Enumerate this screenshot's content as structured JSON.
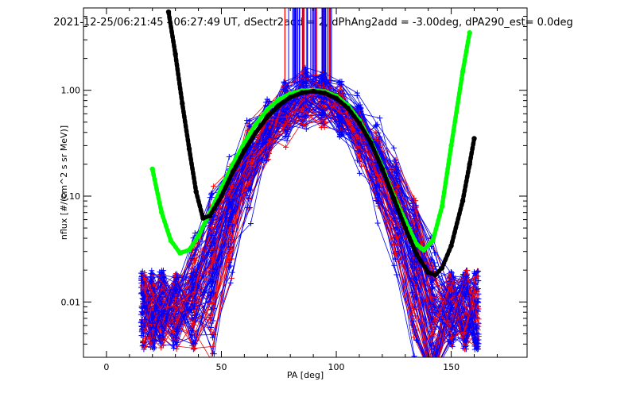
{
  "chart_data": {
    "type": "line",
    "title": "2021-12-25/06:21:45 - 06:27:49 UT, dSectr2add = 2, dPhAng2add = -3.00deg, dPA290_est=   0.0deg",
    "xlabel": "PA [deg]",
    "ylabel": "nflux [#/(cm^2 s sr MeV)]",
    "xlim": [
      -10,
      183
    ],
    "ylim": [
      0.003,
      6.0
    ],
    "yscale": "log",
    "grid": false,
    "x_ticks": [
      {
        "value": 0,
        "label": "0"
      },
      {
        "value": 50,
        "label": "50"
      },
      {
        "value": 100,
        "label": "100"
      },
      {
        "value": 150,
        "label": "150"
      }
    ],
    "y_ticks": [
      {
        "value": 0.01,
        "label": "0.01"
      },
      {
        "value": 0.1,
        "label": "0.10"
      },
      {
        "value": 1.0,
        "label": "1.00"
      }
    ],
    "colors": {
      "red": "#ff0000",
      "blue": "#0000ff",
      "green": "#00ff00",
      "black": "#000000",
      "axis": "#000000"
    },
    "series": [
      {
        "color": "green",
        "style": "thick-dots",
        "x": [
          20,
          24,
          28,
          32,
          36,
          40,
          45,
          50,
          55,
          60,
          65,
          70,
          75,
          80,
          85,
          90,
          95,
          100,
          105,
          110,
          115,
          120,
          125,
          130,
          135,
          138,
          142,
          146,
          150,
          155,
          158
        ],
        "y": [
          0.18,
          0.07,
          0.038,
          0.029,
          0.031,
          0.042,
          0.07,
          0.12,
          0.2,
          0.32,
          0.48,
          0.66,
          0.82,
          0.93,
          0.99,
          1.0,
          0.97,
          0.88,
          0.72,
          0.52,
          0.33,
          0.19,
          0.1,
          0.058,
          0.035,
          0.031,
          0.038,
          0.08,
          0.3,
          1.5,
          3.5
        ]
      },
      {
        "color": "black",
        "style": "thick-dots",
        "x": [
          27,
          30,
          33,
          36,
          39,
          42,
          45,
          50,
          55,
          60,
          65,
          70,
          75,
          80,
          85,
          90,
          95,
          100,
          105,
          110,
          115,
          120,
          125,
          130,
          135,
          140,
          143,
          146,
          150,
          155,
          158,
          160
        ],
        "y": [
          5.5,
          2.2,
          0.75,
          0.28,
          0.11,
          0.062,
          0.065,
          0.1,
          0.17,
          0.27,
          0.4,
          0.56,
          0.72,
          0.86,
          0.95,
          0.98,
          0.94,
          0.84,
          0.68,
          0.49,
          0.32,
          0.18,
          0.095,
          0.05,
          0.028,
          0.019,
          0.018,
          0.021,
          0.034,
          0.09,
          0.2,
          0.35
        ]
      }
    ]
  }
}
